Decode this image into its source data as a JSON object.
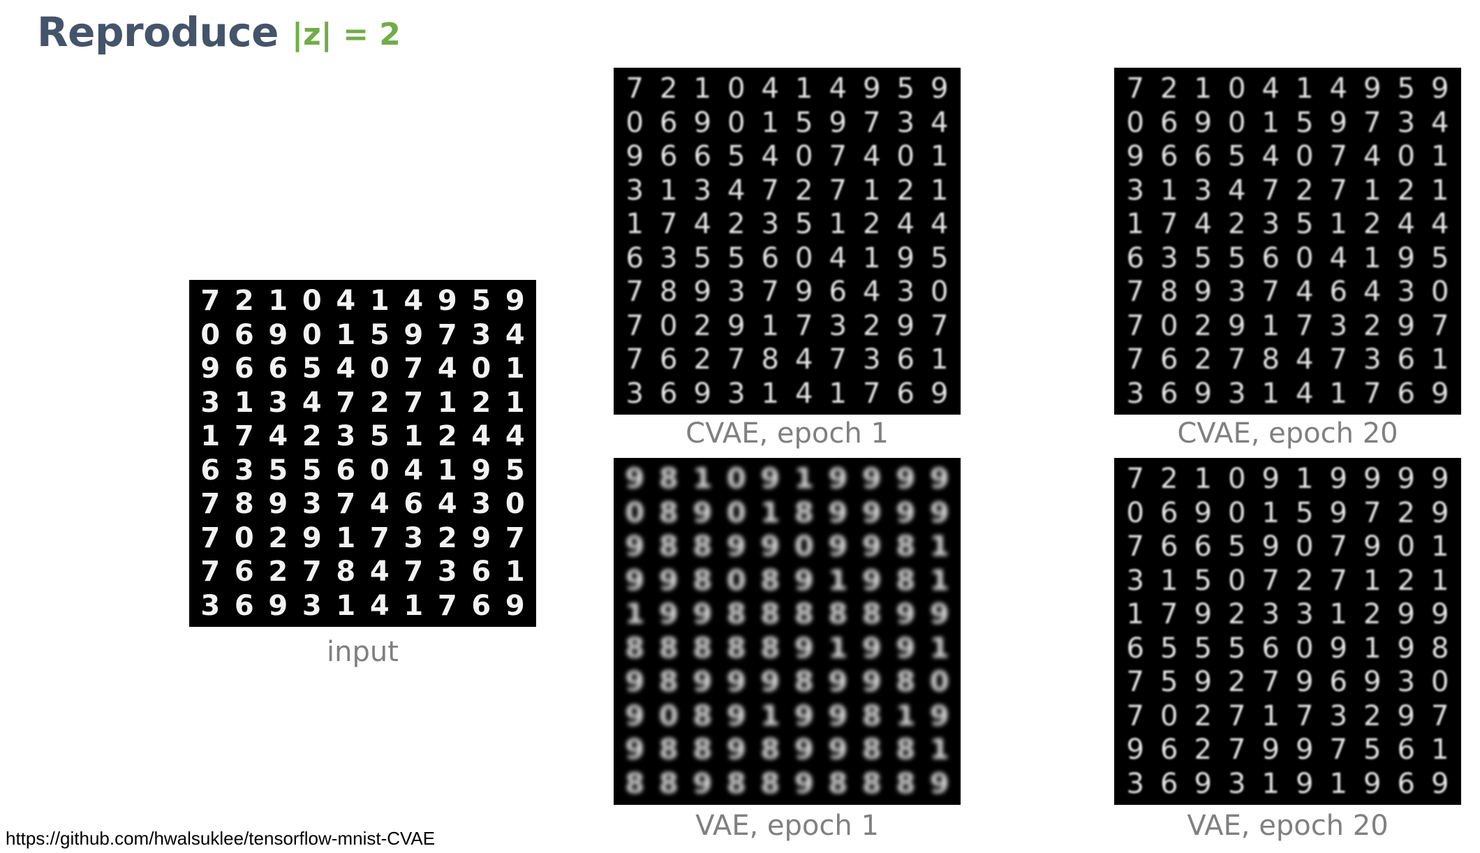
{
  "slide": {
    "title": "Reproduce",
    "z_label": "|z| = 2",
    "source_url": "https://github.com/hwalsuklee/tensorflow-mnist-CVAE"
  },
  "panels": [
    {
      "id": "input",
      "caption": "input",
      "style": "sharp",
      "rows": [
        "7210414959",
        "0690159734",
        "9665407401",
        "3134727121",
        "1742351244",
        "6355604195",
        "7893746430",
        "7029173297",
        "7627847361",
        "3693141769"
      ]
    },
    {
      "id": "cvae-epoch1",
      "caption": "CVAE, epoch 1",
      "style": "soft",
      "rows": [
        "7210414959",
        "0690159734",
        "9665407401",
        "3134727121",
        "1742351244",
        "6355604195",
        "7893796430",
        "7029173297",
        "7627847361",
        "3693141769"
      ]
    },
    {
      "id": "cvae-epoch20",
      "caption": "CVAE, epoch 20",
      "style": "soft",
      "rows": [
        "7210414959",
        "0690159734",
        "9665407401",
        "3134727121",
        "1742351244",
        "6355604195",
        "7893746430",
        "7029173297",
        "7627847361",
        "3693141769"
      ]
    },
    {
      "id": "vae-epoch1",
      "caption": "VAE, epoch 1",
      "style": "blurry",
      "rows": [
        "9810919999",
        "0890189999",
        "9889909981",
        "9980891981",
        "1998888899",
        "8888891991",
        "9899989980",
        "9089199819",
        "9889899881",
        "8898898889"
      ]
    },
    {
      "id": "vae-epoch20",
      "caption": "VAE, epoch 20",
      "style": "soft",
      "rows": [
        "7210919999",
        "0690159729",
        "7665907901",
        "3150727121",
        "1792331299",
        "6555609198",
        "7592796930",
        "7027173297",
        "9627997561",
        "3693191969"
      ]
    }
  ]
}
